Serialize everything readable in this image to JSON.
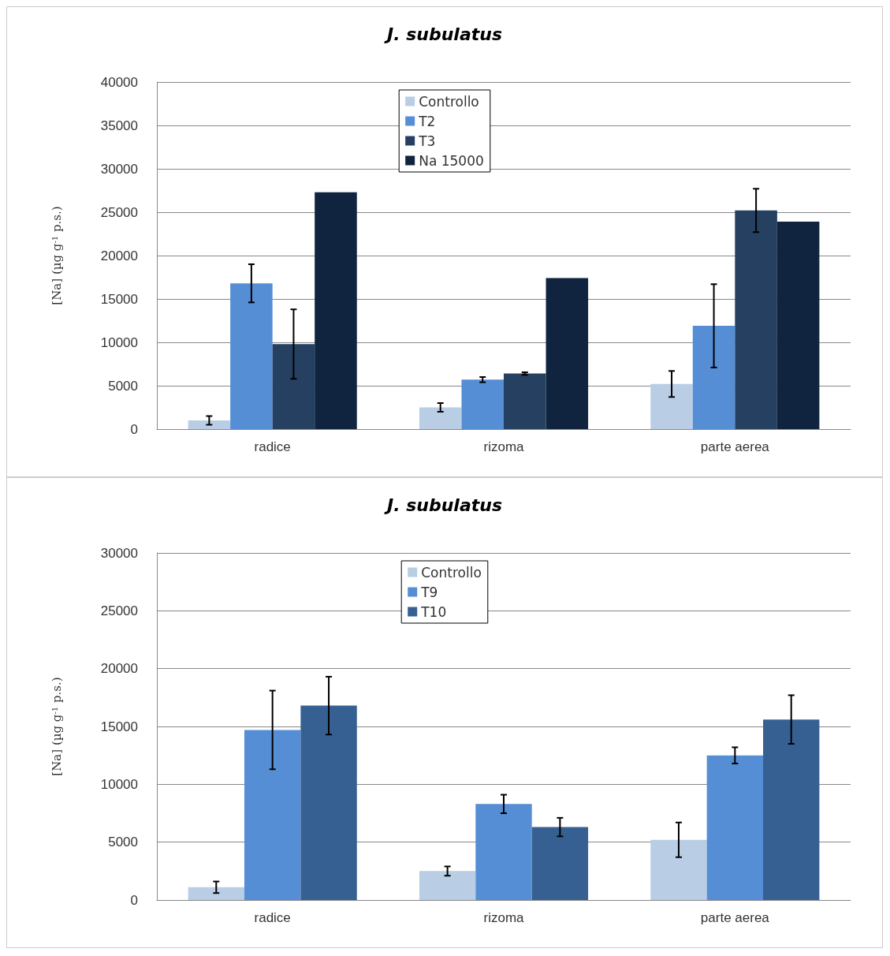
{
  "chart_data": [
    {
      "type": "bar",
      "title": "J. subulatus",
      "ylabel": "[Na] (µg g$^{-1}$ p.s.)",
      "categories": [
        "radice",
        "rizoma",
        "parte aerea"
      ],
      "ylim": [
        0,
        40000
      ],
      "yticks": [
        0,
        5000,
        10000,
        15000,
        20000,
        25000,
        30000,
        35000,
        40000
      ],
      "grid": "y",
      "legend": "top",
      "series": [
        {
          "name": "Controllo",
          "color": "#b9cde5",
          "values": [
            1000,
            2500,
            5200
          ],
          "errors": [
            500,
            500,
            1500
          ]
        },
        {
          "name": "T2",
          "color": "#558ed5",
          "values": [
            16800,
            5700,
            11900
          ],
          "errors": [
            2200,
            300,
            4800
          ]
        },
        {
          "name": "T3",
          "color": "#254061",
          "values": [
            9800,
            6400,
            25200
          ],
          "errors": [
            4000,
            150,
            2500
          ]
        },
        {
          "name": "Na 15000",
          "color": "#10243f",
          "values": [
            27300,
            17400,
            23900
          ]
        }
      ]
    },
    {
      "type": "bar",
      "title": "J. subulatus",
      "ylabel": "[Na] (µg g$^{-1}$ p.s.)",
      "categories": [
        "radice",
        "rizoma",
        "parte aerea"
      ],
      "ylim": [
        0,
        30000
      ],
      "yticks": [
        0,
        5000,
        10000,
        15000,
        20000,
        25000,
        30000
      ],
      "grid": "y",
      "legend": "top",
      "series": [
        {
          "name": "Controllo",
          "color": "#b9cde5",
          "values": [
            1100,
            2500,
            5200
          ],
          "errors": [
            500,
            400,
            1500
          ]
        },
        {
          "name": "T9",
          "color": "#558ed5",
          "values": [
            14700,
            8300,
            12500
          ],
          "errors": [
            3400,
            800,
            700
          ]
        },
        {
          "name": "T10",
          "color": "#376092",
          "values": [
            16800,
            6300,
            15600
          ],
          "errors": [
            2500,
            800,
            2100
          ]
        }
      ]
    }
  ]
}
